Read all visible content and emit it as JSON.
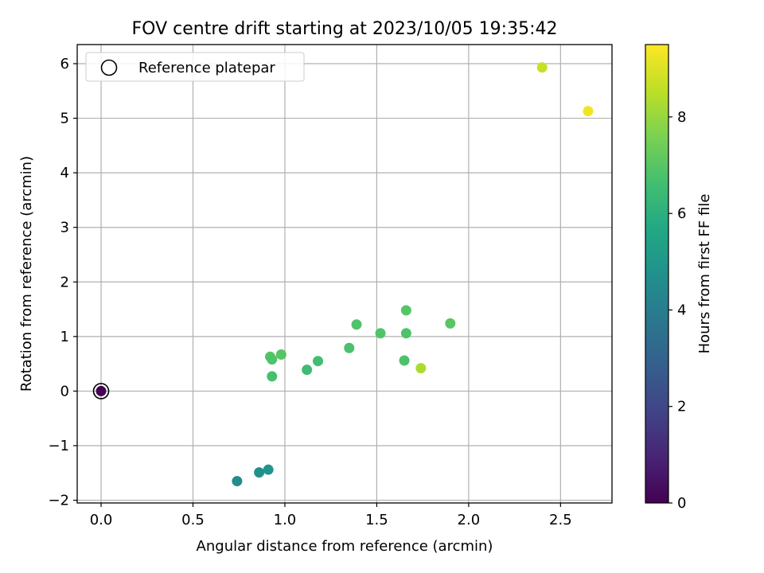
{
  "chart_data": {
    "type": "scatter",
    "title": "FOV centre drift starting at 2023/10/05 19:35:42",
    "xlabel": "Angular distance from reference (arcmin)",
    "ylabel": "Rotation from reference (arcmin)",
    "xlim": [
      -0.13,
      2.78
    ],
    "ylim": [
      -2.05,
      6.35
    ],
    "xticks": [
      0.0,
      0.5,
      1.0,
      1.5,
      2.0,
      2.5
    ],
    "xtick_labels": [
      "0.0",
      "0.5",
      "1.0",
      "1.5",
      "2.0",
      "2.5"
    ],
    "yticks": [
      -2,
      -1,
      0,
      1,
      2,
      3,
      4,
      5,
      6
    ],
    "ytick_labels": [
      "−2",
      "−1",
      "0",
      "1",
      "2",
      "3",
      "4",
      "5",
      "6"
    ],
    "grid": true,
    "legend": {
      "placement": "upper-left",
      "entries": [
        "Reference platepar"
      ]
    },
    "colorbar": {
      "label": "Hours from first FF file",
      "colormap": "viridis",
      "range": [
        0,
        9.5
      ],
      "ticks": [
        0,
        2,
        4,
        6,
        8
      ],
      "tick_labels": [
        "0",
        "2",
        "4",
        "6",
        "8"
      ]
    },
    "reference_point": {
      "x": 0.0,
      "y": 0.0
    },
    "points": [
      {
        "x": 0.0,
        "y": 0.0,
        "hours": 0.0
      },
      {
        "x": 0.74,
        "y": -1.65,
        "hours": 4.6
      },
      {
        "x": 0.86,
        "y": -1.49,
        "hours": 4.75
      },
      {
        "x": 0.91,
        "y": -1.44,
        "hours": 4.9
      },
      {
        "x": 0.92,
        "y": 0.63,
        "hours": 6.9
      },
      {
        "x": 0.93,
        "y": 0.58,
        "hours": 6.85
      },
      {
        "x": 0.93,
        "y": 0.27,
        "hours": 6.7
      },
      {
        "x": 0.98,
        "y": 0.67,
        "hours": 6.95
      },
      {
        "x": 1.12,
        "y": 0.39,
        "hours": 6.5
      },
      {
        "x": 1.18,
        "y": 0.55,
        "hours": 6.6
      },
      {
        "x": 1.35,
        "y": 0.79,
        "hours": 6.75
      },
      {
        "x": 1.39,
        "y": 1.22,
        "hours": 6.85
      },
      {
        "x": 1.52,
        "y": 1.06,
        "hours": 6.9
      },
      {
        "x": 1.65,
        "y": 0.56,
        "hours": 6.8
      },
      {
        "x": 1.66,
        "y": 1.48,
        "hours": 6.95
      },
      {
        "x": 1.66,
        "y": 1.06,
        "hours": 6.85
      },
      {
        "x": 1.74,
        "y": 0.42,
        "hours": 8.3
      },
      {
        "x": 1.9,
        "y": 1.24,
        "hours": 7.0
      },
      {
        "x": 2.4,
        "y": 5.93,
        "hours": 8.7
      },
      {
        "x": 2.65,
        "y": 5.13,
        "hours": 9.3
      }
    ]
  }
}
